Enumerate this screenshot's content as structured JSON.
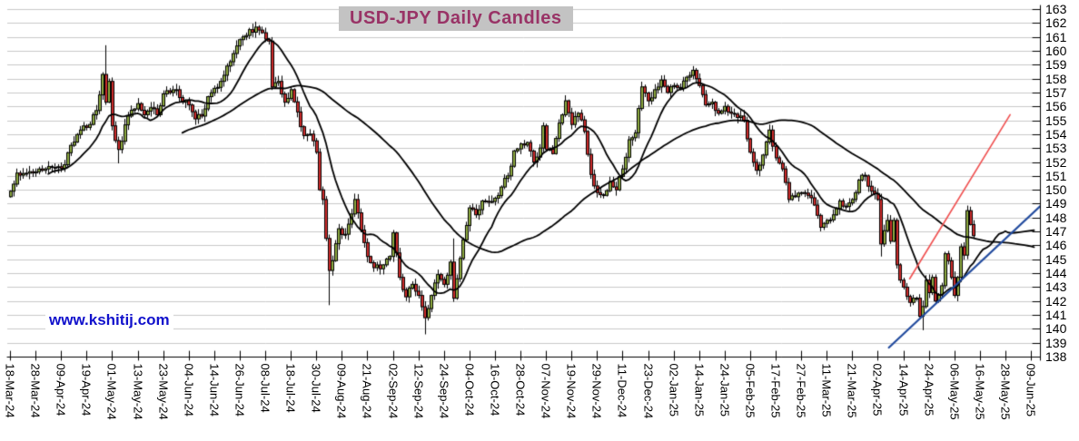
{
  "title": "USD-JPY Daily Candles",
  "watermark": "www.kshitij.com",
  "chart_data": {
    "type": "candlestick",
    "symbol": "USD-JPY",
    "timeframe": "daily",
    "title": "USD-JPY Daily Candles",
    "ylim": [
      138,
      163
    ],
    "y_tick_step": 1,
    "y_tick_labels": [
      "163",
      "162",
      "161",
      "160",
      "159",
      "158",
      "157",
      "156",
      "155",
      "154",
      "153",
      "152",
      "151",
      "150",
      "149",
      "148",
      "147",
      "146",
      "145",
      "144",
      "143",
      "142",
      "141",
      "140",
      "139",
      "138"
    ],
    "x_tick_labels": [
      "18-Mar-24",
      "28-Mar-24",
      "09-Apr-24",
      "19-Apr-24",
      "01-May-24",
      "13-May-24",
      "23-May-24",
      "04-Jun-24",
      "14-Jun-24",
      "26-Jun-24",
      "08-Jul-24",
      "18-Jul-24",
      "30-Jul-24",
      "09-Aug-24",
      "21-Aug-24",
      "02-Sep-24",
      "12-Sep-24",
      "24-Sep-24",
      "04-Oct-24",
      "16-Oct-24",
      "28-Oct-24",
      "07-Nov-24",
      "19-Nov-24",
      "29-Nov-24",
      "11-Dec-24",
      "23-Dec-24",
      "02-Jan-25",
      "14-Jan-25",
      "24-Jan-25",
      "05-Feb-25",
      "17-Feb-25",
      "27-Feb-25",
      "11-Mar-25",
      "21-Mar-25",
      "02-Apr-25",
      "14-Apr-25",
      "24-Apr-25",
      "06-May-25",
      "16-May-25",
      "28-May-25",
      "09-Jun-25"
    ],
    "x_tick_interval_days": 8,
    "total_days": 325,
    "last_candle_day": 302,
    "grid": true,
    "legend": "none",
    "moving_averages": [
      {
        "period": 13,
        "color": "#000000"
      },
      {
        "period": 55,
        "color": "#000000"
      }
    ],
    "price_anchors": [
      [
        0,
        149.9
      ],
      [
        2,
        151.2
      ],
      [
        6,
        151.3
      ],
      [
        10,
        151.4
      ],
      [
        14,
        151.6
      ],
      [
        17,
        151.8
      ],
      [
        19,
        153.2
      ],
      [
        22,
        154.3
      ],
      [
        25,
        154.7
      ],
      [
        27,
        155.7
      ],
      [
        29,
        158.3
      ],
      [
        30,
        156.3
      ],
      [
        31,
        157.8
      ],
      [
        32,
        154.6
      ],
      [
        34,
        152.9
      ],
      [
        37,
        155.3
      ],
      [
        40,
        156.2
      ],
      [
        42,
        155.4
      ],
      [
        44,
        155.9
      ],
      [
        46,
        155.4
      ],
      [
        48,
        156.9
      ],
      [
        52,
        157.2
      ],
      [
        54,
        156.3
      ],
      [
        56,
        156.1
      ],
      [
        58,
        155.1
      ],
      [
        60,
        155.3
      ],
      [
        62,
        156.7
      ],
      [
        64,
        157.3
      ],
      [
        66,
        157.8
      ],
      [
        68,
        158.9
      ],
      [
        70,
        159.8
      ],
      [
        72,
        160.8
      ],
      [
        74,
        161.1
      ],
      [
        77,
        161.7
      ],
      [
        79,
        161.3
      ],
      [
        81,
        160.7
      ],
      [
        82,
        157.4
      ],
      [
        84,
        157.8
      ],
      [
        86,
        156.3
      ],
      [
        88,
        157.2
      ],
      [
        90,
        155.6
      ],
      [
        92,
        153.9
      ],
      [
        94,
        154.0
      ],
      [
        96,
        152.7
      ],
      [
        97,
        150.0
      ],
      [
        98,
        149.3
      ],
      [
        99,
        146.5
      ],
      [
        100,
        144.2
      ],
      [
        101,
        144.9
      ],
      [
        103,
        147.2
      ],
      [
        105,
        146.8
      ],
      [
        108,
        149.3
      ],
      [
        110,
        147.1
      ],
      [
        112,
        145.2
      ],
      [
        114,
        144.4
      ],
      [
        117,
        144.6
      ],
      [
        119,
        145.2
      ],
      [
        120,
        146.9
      ],
      [
        122,
        143.7
      ],
      [
        124,
        142.3
      ],
      [
        126,
        143.2
      ],
      [
        128,
        142.4
      ],
      [
        130,
        140.8
      ],
      [
        132,
        142.4
      ],
      [
        134,
        143.9
      ],
      [
        136,
        143.2
      ],
      [
        138,
        144.8
      ],
      [
        139,
        142.2
      ],
      [
        140,
        143.6
      ],
      [
        142,
        146.4
      ],
      [
        144,
        148.7
      ],
      [
        146,
        148.2
      ],
      [
        148,
        149.2
      ],
      [
        150,
        149.1
      ],
      [
        152,
        149.4
      ],
      [
        154,
        150.2
      ],
      [
        156,
        151.0
      ],
      [
        158,
        152.8
      ],
      [
        160,
        153.3
      ],
      [
        162,
        153.4
      ],
      [
        164,
        152.0
      ],
      [
        166,
        153.0
      ],
      [
        167,
        154.6
      ],
      [
        168,
        152.9
      ],
      [
        170,
        152.6
      ],
      [
        172,
        154.8
      ],
      [
        174,
        156.4
      ],
      [
        176,
        154.7
      ],
      [
        178,
        155.5
      ],
      [
        180,
        154.2
      ],
      [
        182,
        151.1
      ],
      [
        184,
        149.8
      ],
      [
        186,
        149.6
      ],
      [
        188,
        150.6
      ],
      [
        190,
        150.0
      ],
      [
        192,
        151.5
      ],
      [
        194,
        153.6
      ],
      [
        196,
        154.1
      ],
      [
        198,
        157.4
      ],
      [
        200,
        156.4
      ],
      [
        202,
        157.2
      ],
      [
        204,
        157.9
      ],
      [
        206,
        157.0
      ],
      [
        208,
        157.5
      ],
      [
        210,
        157.3
      ],
      [
        212,
        158.1
      ],
      [
        214,
        158.6
      ],
      [
        216,
        157.5
      ],
      [
        218,
        156.1
      ],
      [
        220,
        156.3
      ],
      [
        222,
        155.5
      ],
      [
        224,
        156.0
      ],
      [
        226,
        155.5
      ],
      [
        228,
        155.2
      ],
      [
        230,
        155.0
      ],
      [
        232,
        152.7
      ],
      [
        234,
        151.4
      ],
      [
        236,
        152.5
      ],
      [
        238,
        154.3
      ],
      [
        240,
        152.3
      ],
      [
        242,
        151.5
      ],
      [
        244,
        149.3
      ],
      [
        246,
        149.5
      ],
      [
        248,
        149.8
      ],
      [
        250,
        149.6
      ],
      [
        252,
        148.9
      ],
      [
        254,
        147.3
      ],
      [
        256,
        147.8
      ],
      [
        258,
        148.2
      ],
      [
        260,
        149.2
      ],
      [
        262,
        148.8
      ],
      [
        264,
        149.3
      ],
      [
        266,
        150.7
      ],
      [
        268,
        151.0
      ],
      [
        270,
        149.9
      ],
      [
        272,
        149.3
      ],
      [
        273,
        146.1
      ],
      [
        275,
        147.8
      ],
      [
        276,
        146.3
      ],
      [
        277,
        147.8
      ],
      [
        278,
        144.6
      ],
      [
        279,
        143.5
      ],
      [
        280,
        143.0
      ],
      [
        282,
        141.9
      ],
      [
        284,
        142.2
      ],
      [
        285,
        140.9
      ],
      [
        286,
        141.6
      ],
      [
        287,
        143.5
      ],
      [
        288,
        142.6
      ],
      [
        289,
        143.7
      ],
      [
        290,
        142.0
      ],
      [
        292,
        143.1
      ],
      [
        293,
        145.4
      ],
      [
        294,
        144.9
      ],
      [
        295,
        143.7
      ],
      [
        296,
        142.4
      ],
      [
        297,
        143.7
      ],
      [
        298,
        145.9
      ],
      [
        299,
        145.3
      ],
      [
        300,
        148.5
      ],
      [
        301,
        147.5
      ],
      [
        302,
        146.7
      ]
    ],
    "wick_overrides": {
      "30": {
        "high": 160.4
      },
      "34": {
        "low": 151.9
      },
      "77": {
        "high": 161.95
      },
      "100": {
        "low": 141.7
      },
      "130": {
        "low": 139.6
      },
      "139": {
        "high": 146.5
      },
      "174": {
        "high": 156.8
      },
      "214": {
        "high": 158.9
      },
      "273": {
        "low": 145.2
      },
      "286": {
        "low": 139.9
      }
    },
    "trendlines": [
      {
        "name": "red-projection-line",
        "color": "#F04F4F",
        "width": 1.6,
        "from": {
          "day": 282,
          "price": 143.6
        },
        "to": {
          "day": 313.5,
          "price": 155.4
        }
      },
      {
        "name": "blue-support-trendline",
        "color": "#224B9E",
        "width": 2.2,
        "from": {
          "day": 275.5,
          "price": 138.65
        },
        "to": {
          "day": 323.5,
          "price": 148.95
        }
      }
    ],
    "colors": {
      "up_candle": "#8FAC42",
      "down_candle": "#CE2D2D",
      "candle_outline": "#000000",
      "ma_line": "#000000",
      "grid": "#C9C9C9",
      "axis": "#000000",
      "title_text": "#993366",
      "title_bg": "#C3C3C3",
      "watermark_text": "#1111CC",
      "background": "#FFFFFF"
    }
  }
}
